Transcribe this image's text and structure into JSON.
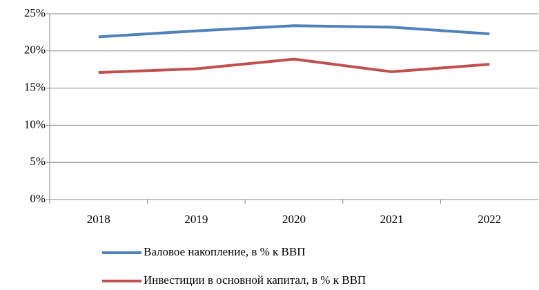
{
  "chart_data": {
    "type": "line",
    "categories": [
      "2018",
      "2019",
      "2020",
      "2021",
      "2022"
    ],
    "series": [
      {
        "name": "Валовое накопление, в % к ВВП",
        "color": "#4f81bd",
        "values": [
          21.9,
          22.7,
          23.4,
          23.2,
          22.3
        ]
      },
      {
        "name": "Инвестиции в основной капитал,  в % к ВВП",
        "color": "#c0504d",
        "values": [
          17.1,
          17.6,
          18.9,
          17.2,
          18.2
        ]
      }
    ],
    "ylim": [
      0,
      25
    ],
    "yticks": [
      {
        "value": 0,
        "label": "0%"
      },
      {
        "value": 5,
        "label": "5%"
      },
      {
        "value": 10,
        "label": "10%"
      },
      {
        "value": 15,
        "label": "15%"
      },
      {
        "value": 20,
        "label": "20%"
      },
      {
        "value": 25,
        "label": "25%"
      }
    ],
    "grid": true,
    "legend": "bottom"
  }
}
